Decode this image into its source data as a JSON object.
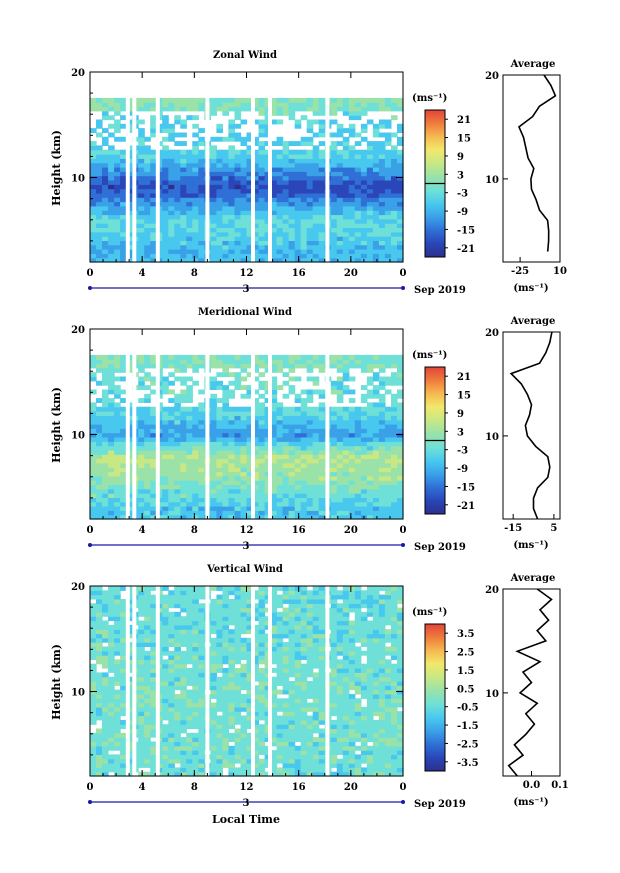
{
  "colors": {
    "colormap": [
      "#2c2f8c",
      "#2a46b8",
      "#2f6fd6",
      "#3aa0e8",
      "#48c8ee",
      "#6ee0d8",
      "#9ae2a8",
      "#c9e884",
      "#f2e86a",
      "#f6b850",
      "#ef7b3c",
      "#e2453a"
    ],
    "axis": "#000000",
    "time_axis_line": "#1a1aa8",
    "background": "#ffffff"
  },
  "chart_data": [
    {
      "type": "heatmap",
      "title": "Zonal Wind",
      "ylabel": "Height (km)",
      "xlabel": "",
      "ylim": [
        2,
        20
      ],
      "xlim": [
        0,
        24
      ],
      "y_ticks": [
        "10",
        "20"
      ],
      "x_ticks": [
        "0",
        "4",
        "8",
        "12",
        "16",
        "20",
        "0"
      ],
      "date_label": "3",
      "month_label": "Sep 2019",
      "colorbar": {
        "unit_label": "(ms⁻¹)",
        "range": [
          -24,
          24
        ],
        "ticks": [
          "21",
          "15",
          "9",
          "3",
          "-3",
          "-9",
          "-15",
          "-21"
        ],
        "zero_line": 0
      },
      "data_gaps_hours": [
        2.9,
        3.4,
        5.2,
        9.0,
        12.5,
        13.8,
        18.2
      ],
      "height_profile": [
        {
          "height_km": 3,
          "value": -7
        },
        {
          "height_km": 6,
          "value": -3
        },
        {
          "height_km": 9,
          "value": -18
        },
        {
          "height_km": 12,
          "value": -5
        },
        {
          "height_km": 15,
          "value": -5
        },
        {
          "height_km": 17,
          "value": 1
        }
      ],
      "average_profile": {
        "title": "Average",
        "xlabel": "(ms⁻¹)",
        "xlim": [
          -40,
          10
        ],
        "x_ticks": [
          "-25",
          "10"
        ],
        "y_ticks": [
          "10",
          "20"
        ],
        "points": [
          {
            "h": 3,
            "v": -0.8
          },
          {
            "h": 4,
            "v": 0.0
          },
          {
            "h": 5,
            "v": 0.1
          },
          {
            "h": 6,
            "v": -0.9
          },
          {
            "h": 7,
            "v": -8.0
          },
          {
            "h": 8,
            "v": -11.0
          },
          {
            "h": 9,
            "v": -15.0
          },
          {
            "h": 10,
            "v": -15.5
          },
          {
            "h": 11,
            "v": -13.0
          },
          {
            "h": 12,
            "v": -18.0
          },
          {
            "h": 13,
            "v": -20.0
          },
          {
            "h": 14,
            "v": -22.0
          },
          {
            "h": 15,
            "v": -26.0
          },
          {
            "h": 16,
            "v": -14.0
          },
          {
            "h": 17,
            "v": -8.0
          },
          {
            "h": 18,
            "v": 6.0
          },
          {
            "h": 19,
            "v": 2.0
          },
          {
            "h": 20,
            "v": -4.0
          }
        ]
      }
    },
    {
      "type": "heatmap",
      "title": "Meridional Wind",
      "ylabel": "Height (km)",
      "xlabel": "",
      "ylim": [
        2,
        20
      ],
      "xlim": [
        0,
        24
      ],
      "y_ticks": [
        "10",
        "20"
      ],
      "x_ticks": [
        "0",
        "4",
        "8",
        "12",
        "16",
        "20",
        "0"
      ],
      "date_label": "3",
      "month_label": "Sep 2019",
      "colorbar": {
        "unit_label": "(ms⁻¹)",
        "range": [
          -24,
          24
        ],
        "ticks": [
          "21",
          "15",
          "9",
          "3",
          "-3",
          "-9",
          "-15",
          "-21"
        ],
        "zero_line": 0
      },
      "data_gaps_hours": [
        2.9,
        3.4,
        5.2,
        9.0,
        12.5,
        13.8,
        18.2
      ],
      "height_profile": [
        {
          "height_km": 3,
          "value": -6
        },
        {
          "height_km": 6,
          "value": 2
        },
        {
          "height_km": 8,
          "value": 4
        },
        {
          "height_km": 10,
          "value": -10
        },
        {
          "height_km": 12,
          "value": -4
        },
        {
          "height_km": 15,
          "value": -2
        },
        {
          "height_km": 17,
          "value": 0
        }
      ],
      "average_profile": {
        "title": "Average",
        "xlabel": "(ms⁻¹)",
        "xlim": [
          -20,
          8
        ],
        "x_ticks": [
          "-15",
          "5"
        ],
        "y_ticks": [
          "10",
          "20"
        ],
        "points": [
          {
            "h": 2,
            "v": -3.0
          },
          {
            "h": 3,
            "v": -5.0
          },
          {
            "h": 4,
            "v": -5.0
          },
          {
            "h": 5,
            "v": -3.0
          },
          {
            "h": 6,
            "v": 2.0
          },
          {
            "h": 7,
            "v": 3.0
          },
          {
            "h": 8,
            "v": 2.0
          },
          {
            "h": 9,
            "v": -4.0
          },
          {
            "h": 10,
            "v": -8.0
          },
          {
            "h": 11,
            "v": -9.0
          },
          {
            "h": 12,
            "v": -7.0
          },
          {
            "h": 13,
            "v": -6.0
          },
          {
            "h": 14,
            "v": -8.0
          },
          {
            "h": 15,
            "v": -11.0
          },
          {
            "h": 16,
            "v": -16.0
          },
          {
            "h": 17,
            "v": -2.0
          },
          {
            "h": 18,
            "v": 1.0
          },
          {
            "h": 19,
            "v": 3.0
          },
          {
            "h": 20,
            "v": 4.0
          }
        ]
      }
    },
    {
      "type": "heatmap",
      "title": "Vertical Wind",
      "ylabel": "Height (km)",
      "xlabel": "Local Time",
      "ylim": [
        2,
        20
      ],
      "xlim": [
        0,
        24
      ],
      "y_ticks": [
        "10",
        "20"
      ],
      "x_ticks": [
        "0",
        "4",
        "8",
        "12",
        "16",
        "20",
        "0"
      ],
      "date_label": "3",
      "month_label": "Sep 2019",
      "colorbar": {
        "unit_label": "(ms⁻¹)",
        "range": [
          -4,
          4
        ],
        "ticks": [
          "3.5",
          "2.5",
          "1.5",
          "0.5",
          "-0.5",
          "-1.5",
          "-2.5",
          "-3.5"
        ],
        "zero_line": null
      },
      "data_gaps_hours": [
        2.9,
        3.4,
        5.2,
        9.0,
        12.5,
        13.8,
        18.2
      ],
      "height_profile": [
        {
          "height_km": 3,
          "value": -0.3
        },
        {
          "height_km": 10,
          "value": -0.2
        },
        {
          "height_km": 17,
          "value": -0.4
        }
      ],
      "average_profile": {
        "title": "Average",
        "xlabel": "(ms⁻¹)",
        "xlim": [
          -0.1,
          0.1
        ],
        "x_ticks": [
          "0.0",
          "0.1"
        ],
        "y_ticks": [
          "10",
          "20"
        ],
        "points": [
          {
            "h": 2,
            "v": -0.05
          },
          {
            "h": 3,
            "v": -0.08
          },
          {
            "h": 4,
            "v": -0.03
          },
          {
            "h": 5,
            "v": -0.06
          },
          {
            "h": 6,
            "v": -0.02
          },
          {
            "h": 7,
            "v": 0.01
          },
          {
            "h": 8,
            "v": -0.02
          },
          {
            "h": 9,
            "v": 0.02
          },
          {
            "h": 10,
            "v": -0.04
          },
          {
            "h": 11,
            "v": 0.0
          },
          {
            "h": 12,
            "v": -0.03
          },
          {
            "h": 13,
            "v": 0.03
          },
          {
            "h": 14,
            "v": -0.05
          },
          {
            "h": 15,
            "v": 0.05
          },
          {
            "h": 16,
            "v": 0.02
          },
          {
            "h": 17,
            "v": 0.06
          },
          {
            "h": 18,
            "v": 0.03
          },
          {
            "h": 19,
            "v": 0.07
          },
          {
            "h": 20,
            "v": 0.02
          }
        ]
      }
    }
  ]
}
